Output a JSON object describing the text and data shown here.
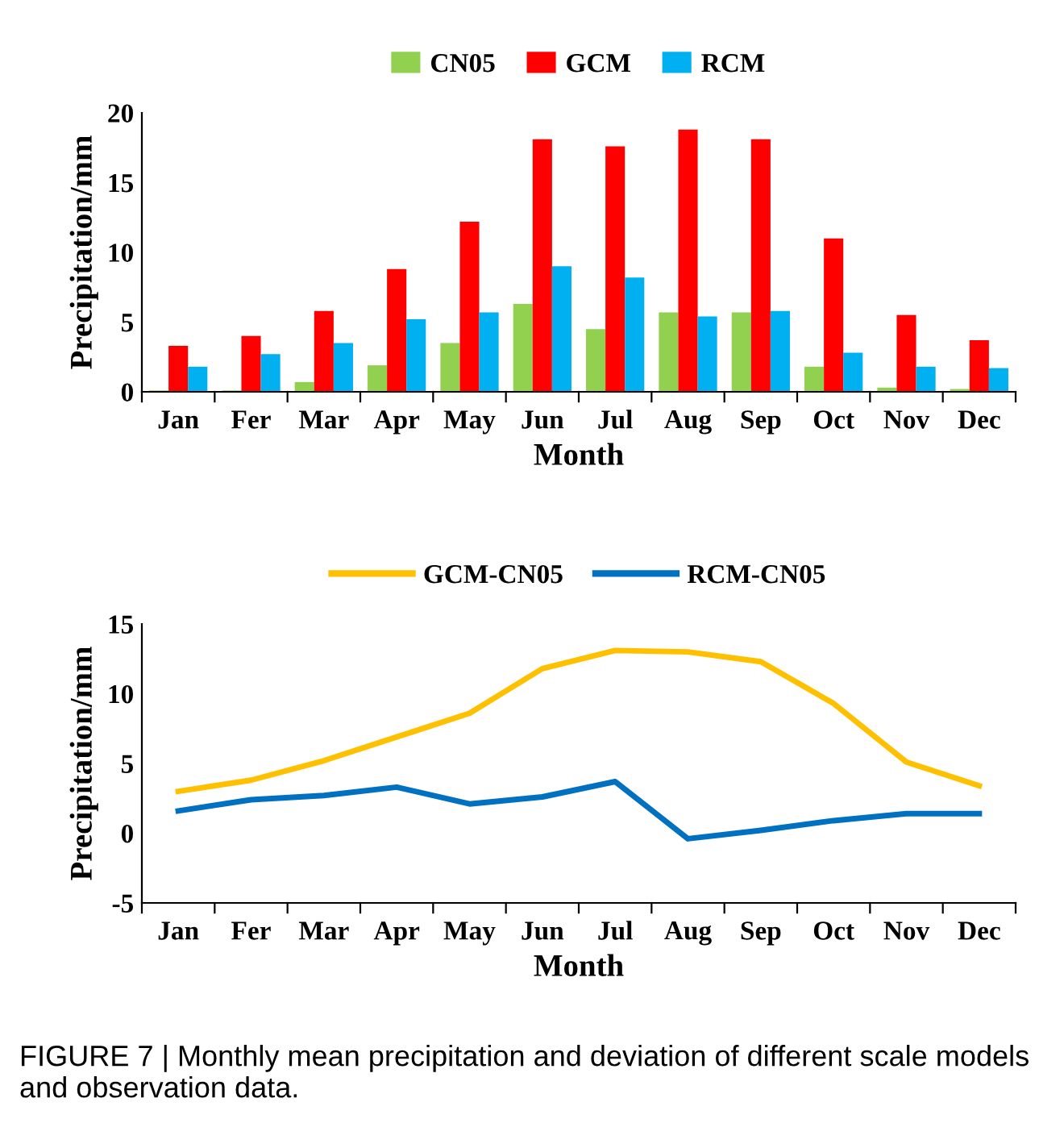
{
  "chart_data": [
    {
      "type": "bar",
      "xlabel": "Month",
      "ylabel": "Precipitation/mm",
      "categories": [
        "Jan",
        "Fer",
        "Mar",
        "Apr",
        "May",
        "Jun",
        "Jul",
        "Aug",
        "Sep",
        "Oct",
        "Nov",
        "Dec"
      ],
      "series": [
        {
          "name": "CN05",
          "color": "#92d050",
          "values": [
            0.1,
            0.1,
            0.7,
            1.9,
            3.5,
            6.3,
            4.5,
            5.7,
            5.7,
            1.8,
            0.3,
            0.2
          ]
        },
        {
          "name": "GCM",
          "color": "#ff0000",
          "values": [
            3.3,
            4.0,
            5.8,
            8.8,
            12.2,
            18.1,
            17.6,
            18.8,
            18.1,
            11.0,
            5.5,
            3.7
          ]
        },
        {
          "name": "RCM",
          "color": "#00b0f0",
          "values": [
            1.8,
            2.7,
            3.5,
            5.2,
            5.7,
            9.0,
            8.2,
            5.4,
            5.8,
            2.8,
            1.8,
            1.7
          ]
        }
      ],
      "ylim": [
        0,
        20
      ],
      "yticks": [
        0,
        5,
        10,
        15,
        20
      ],
      "grid": false,
      "legend": "top"
    },
    {
      "type": "line",
      "xlabel": "Month",
      "ylabel": "Precipitation/mm",
      "categories": [
        "Jan",
        "Fer",
        "Mar",
        "Apr",
        "May",
        "Jun",
        "Jul",
        "Aug",
        "Sep",
        "Oct",
        "Nov",
        "Dec"
      ],
      "series": [
        {
          "name": "GCM-CN05",
          "color": "#ffc000",
          "values": [
            3.0,
            3.8,
            5.2,
            6.9,
            8.6,
            11.8,
            13.1,
            13.0,
            12.3,
            9.3,
            5.1,
            3.4
          ]
        },
        {
          "name": "RCM-CN05",
          "color": "#0070c0",
          "values": [
            1.6,
            2.4,
            2.7,
            3.3,
            2.1,
            2.6,
            3.7,
            -0.4,
            0.2,
            0.9,
            1.4,
            1.4
          ]
        }
      ],
      "ylim": [
        -5,
        15
      ],
      "yticks": [
        -5,
        0,
        5,
        10,
        15
      ],
      "grid": false,
      "legend": "top",
      "marker": "none",
      "line_style": "solid",
      "annotations": [
        "FIGURE 7 | Monthly mean precipitation and deviation of different scale models and observation data."
      ]
    }
  ]
}
